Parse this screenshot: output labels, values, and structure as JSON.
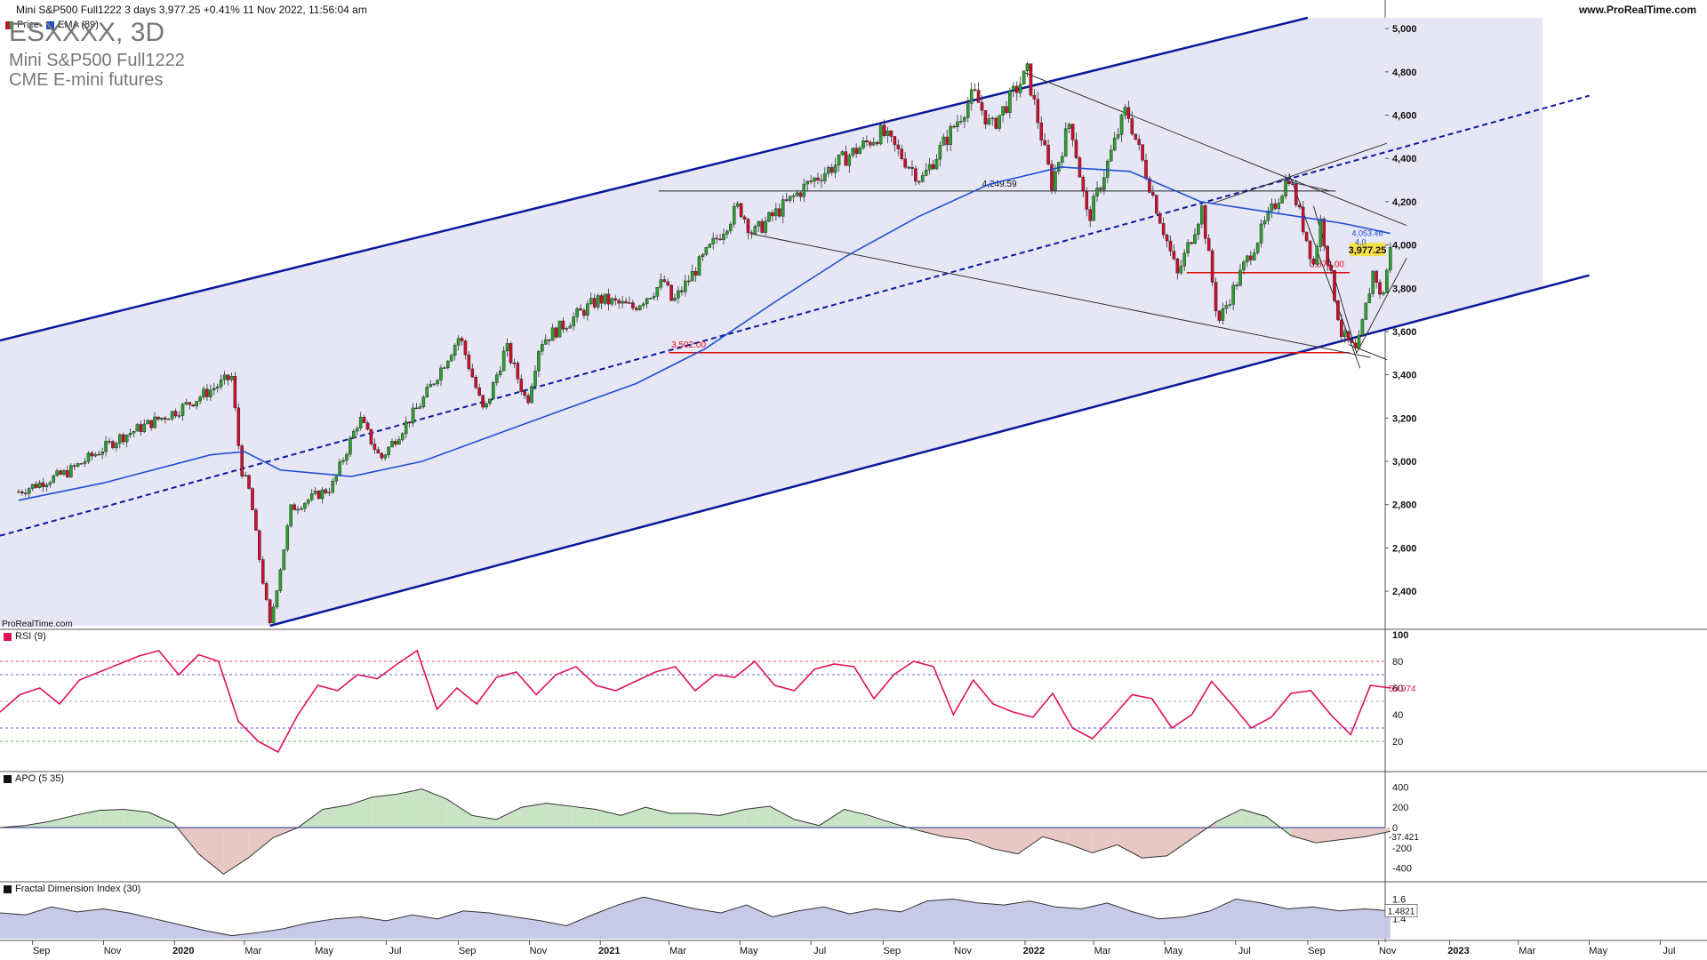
{
  "header": {
    "title": "Mini S&P500 Full1222 3 days 3,977.25 +0.41% 11 Nov 2022, 11:56:04 am",
    "site": "www.ProRealTime.com"
  },
  "overlay": {
    "ticker": "ESXXXX, 3D",
    "name": "Mini S&P500 Full1222",
    "exchange": "CME E-mini futures",
    "watermark": "ProRealTime.com"
  },
  "legend": {
    "price": "Price",
    "ema": "EMA (89)"
  },
  "colors": {
    "up": "#2e9e2e",
    "down": "#c8102e",
    "channel": "#0b1a9c",
    "channel_fill": "#e6e6f5",
    "ema": "#1f4fd1",
    "red_level": "#e01010",
    "rsi": "#e0105a",
    "apo_pos": "#c9e4c4",
    "apo_neg": "#e8c8c4",
    "fdi_fill": "#c8c8e8"
  },
  "chart_data": [
    {
      "type": "candlestick",
      "panel": "price",
      "x_axis": [
        "Sep",
        "Nov",
        "2020",
        "Mar",
        "May",
        "Jul",
        "Sep",
        "Nov",
        "2021",
        "Mar",
        "May",
        "Jul",
        "Sep",
        "Nov",
        "2022",
        "Mar",
        "May",
        "Jul",
        "Sep",
        "Nov",
        "2023",
        "Mar",
        "May",
        "Jul"
      ],
      "y_ticks": [
        "5,000",
        "4,800",
        "4,600",
        "4,400",
        "4,200",
        "4,000",
        "3,800",
        "3,600",
        "3,400",
        "3,200",
        "3,000",
        "2,800",
        "2,600",
        "2,400"
      ],
      "ylim": [
        2240,
        5050
      ],
      "price_path": [
        [
          "2019-08-20",
          2860
        ],
        [
          "2019-10-01",
          2950
        ],
        [
          "2019-11-15",
          3110
        ],
        [
          "2020-01-05",
          3240
        ],
        [
          "2020-02-19",
          3390
        ],
        [
          "2020-02-27",
          2970
        ],
        [
          "2020-03-06",
          2850
        ],
        [
          "2020-03-12",
          2620
        ],
        [
          "2020-03-23",
          2240
        ],
        [
          "2020-04-10",
          2780
        ],
        [
          "2020-05-15",
          2880
        ],
        [
          "2020-06-08",
          3200
        ],
        [
          "2020-06-26",
          3010
        ],
        [
          "2020-07-31",
          3270
        ],
        [
          "2020-09-02",
          3580
        ],
        [
          "2020-09-23",
          3220
        ],
        [
          "2020-10-12",
          3530
        ],
        [
          "2020-10-30",
          3270
        ],
        [
          "2020-11-10",
          3550
        ],
        [
          "2020-12-31",
          3750
        ],
        [
          "2021-01-29",
          3710
        ],
        [
          "2021-02-25",
          3830
        ],
        [
          "2021-03-04",
          3730
        ],
        [
          "2021-04-30",
          4180
        ],
        [
          "2021-05-12",
          4050
        ],
        [
          "2021-06-30",
          4290
        ],
        [
          "2021-08-31",
          4520
        ],
        [
          "2021-10-04",
          4300
        ],
        [
          "2021-11-18",
          4700
        ],
        [
          "2021-12-03",
          4540
        ],
        [
          "2022-01-03",
          4800
        ],
        [
          "2022-01-24",
          4280
        ],
        [
          "2022-02-09",
          4580
        ],
        [
          "2022-02-24",
          4110
        ],
        [
          "2022-03-29",
          4630
        ],
        [
          "2022-05-12",
          3860
        ],
        [
          "2022-06-02",
          4170
        ],
        [
          "2022-06-16",
          3640
        ],
        [
          "2022-07-08",
          3900
        ],
        [
          "2022-08-16",
          4320
        ],
        [
          "2022-09-06",
          3910
        ],
        [
          "2022-09-12",
          4110
        ],
        [
          "2022-09-30",
          3590
        ],
        [
          "2022-10-13",
          3500
        ],
        [
          "2022-10-28",
          3900
        ],
        [
          "2022-11-03",
          3730
        ],
        [
          "2022-11-11",
          3977
        ]
      ],
      "series": [
        {
          "name": "EMA (89)",
          "points": [
            [
              "2019-08-20",
              2820
            ],
            [
              "2019-11-01",
              2900
            ],
            [
              "2020-02-01",
              3030
            ],
            [
              "2020-03-01",
              3045
            ],
            [
              "2020-04-01",
              2960
            ],
            [
              "2020-06-01",
              2930
            ],
            [
              "2020-08-01",
              3000
            ],
            [
              "2020-10-01",
              3120
            ],
            [
              "2020-12-01",
              3240
            ],
            [
              "2021-02-01",
              3360
            ],
            [
              "2021-04-01",
              3520
            ],
            [
              "2021-06-01",
              3740
            ],
            [
              "2021-08-01",
              3950
            ],
            [
              "2021-10-01",
              4130
            ],
            [
              "2021-12-01",
              4280
            ],
            [
              "2022-02-01",
              4360
            ],
            [
              "2022-04-01",
              4340
            ],
            [
              "2022-06-01",
              4200
            ],
            [
              "2022-08-01",
              4150
            ],
            [
              "2022-10-01",
              4100
            ],
            [
              "2022-11-11",
              4053.46
            ]
          ]
        }
      ],
      "annotations": {
        "last_price": "3,977.25",
        "ema_last": "4,053.46",
        "ema_partial": "4,0",
        "level_high": "3,872.00",
        "level_low": "3,502.00",
        "level_mid": "4,249.59"
      },
      "levels": [
        3872,
        3502,
        4249.59
      ],
      "channel": {
        "upper": [
          [
            "2019-08-20",
            3580
          ],
          [
            "2022-09-01",
            5050
          ]
        ],
        "lower": [
          [
            "2020-03-23",
            2240
          ],
          [
            "2023-05-01",
            3860
          ]
        ],
        "mid": [
          [
            "2019-08-20",
            2680
          ],
          [
            "2023-05-01",
            4690
          ]
        ]
      }
    },
    {
      "type": "line",
      "panel": "rsi",
      "title": "RSI (9)",
      "y_ticks": [
        "100",
        "80",
        "60",
        "40",
        "20"
      ],
      "ylim": [
        0,
        100
      ],
      "last": "59.974",
      "series": [
        {
          "name": "RSI (9)",
          "values": [
            42,
            55,
            60,
            48,
            66,
            72,
            78,
            84,
            88,
            70,
            85,
            80,
            35,
            20,
            12,
            40,
            62,
            58,
            70,
            67,
            78,
            88,
            44,
            60,
            48,
            68,
            72,
            55,
            70,
            76,
            62,
            58,
            65,
            72,
            76,
            58,
            70,
            68,
            80,
            62,
            58,
            74,
            78,
            76,
            52,
            70,
            80,
            76,
            40,
            66,
            48,
            42,
            38,
            56,
            30,
            22,
            38,
            55,
            52,
            30,
            40,
            65,
            48,
            30,
            38,
            56,
            58,
            40,
            25,
            62,
            60
          ]
        }
      ]
    },
    {
      "type": "area",
      "panel": "apo",
      "title": "APO (5 35)",
      "y_ticks": [
        "400",
        "200",
        "0",
        "-200",
        "-400"
      ],
      "ylim": [
        -500,
        500
      ],
      "last": "-37.421",
      "series": [
        {
          "name": "APO (5 35)",
          "values": [
            0,
            20,
            60,
            120,
            170,
            180,
            150,
            40,
            -260,
            -460,
            -300,
            -100,
            0,
            180,
            220,
            300,
            330,
            380,
            280,
            120,
            80,
            200,
            240,
            210,
            180,
            120,
            200,
            140,
            140,
            120,
            180,
            210,
            80,
            20,
            180,
            120,
            40,
            -30,
            -90,
            -120,
            -210,
            -260,
            -90,
            -160,
            -250,
            -170,
            -300,
            -280,
            -110,
            60,
            180,
            110,
            -80,
            -150,
            -120,
            -90,
            -37
          ]
        }
      ]
    },
    {
      "type": "area",
      "panel": "fdi",
      "title": "Fractal Dimension Index (30)",
      "y_ticks": [
        "1.6",
        "1.4"
      ],
      "ylim": [
        1.2,
        1.72
      ],
      "last": "1.4821",
      "series": [
        {
          "name": "Fractal Dimension Index (30)",
          "values": [
            1.46,
            1.44,
            1.52,
            1.47,
            1.5,
            1.46,
            1.4,
            1.34,
            1.28,
            1.23,
            1.26,
            1.3,
            1.36,
            1.4,
            1.42,
            1.38,
            1.44,
            1.4,
            1.48,
            1.46,
            1.42,
            1.38,
            1.33,
            1.44,
            1.54,
            1.62,
            1.56,
            1.5,
            1.46,
            1.54,
            1.42,
            1.48,
            1.52,
            1.45,
            1.5,
            1.47,
            1.58,
            1.6,
            1.56,
            1.54,
            1.58,
            1.52,
            1.5,
            1.56,
            1.47,
            1.4,
            1.42,
            1.48,
            1.6,
            1.56,
            1.5,
            1.52,
            1.48,
            1.5,
            1.48
          ]
        }
      ]
    }
  ]
}
